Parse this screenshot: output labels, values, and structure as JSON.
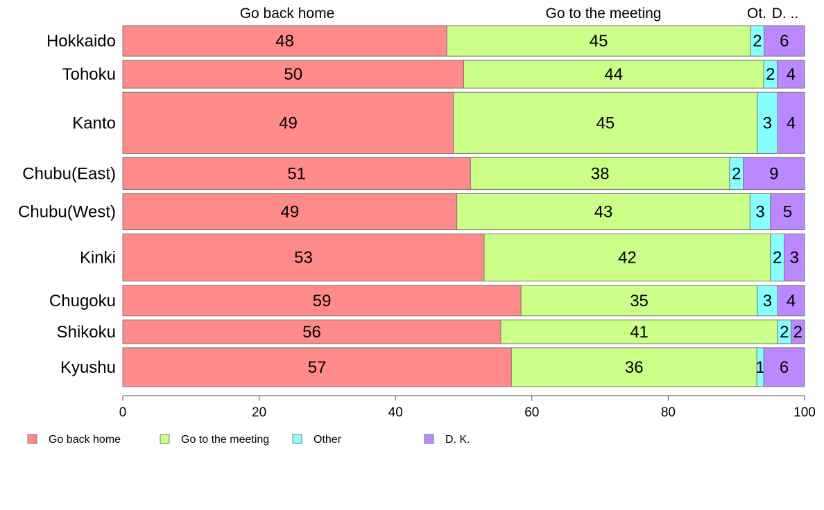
{
  "chart_data": {
    "type": "bar",
    "orientation": "horizontal",
    "stacked": true,
    "categories": [
      "Hokkaido",
      "Tohoku",
      "Kanto",
      "Chubu(East)",
      "Chubu(West)",
      "Kinki",
      "Chugoku",
      "Shikoku",
      "Kyushu"
    ],
    "series": [
      {
        "name": "Go back home",
        "color": "#ff8a8a",
        "values": [
          48,
          50,
          49,
          51,
          49,
          53,
          59,
          56,
          57
        ]
      },
      {
        "name": "Go to the meeting",
        "color": "#ccff88",
        "values": [
          45,
          44,
          45,
          38,
          43,
          42,
          35,
          41,
          36
        ]
      },
      {
        "name": "Other",
        "color": "#88ffff",
        "values": [
          2,
          2,
          3,
          2,
          3,
          2,
          3,
          2,
          1
        ]
      },
      {
        "name": "D. K.",
        "color": "#bb88ff",
        "values": [
          6,
          4,
          4,
          9,
          5,
          3,
          4,
          2,
          6
        ]
      }
    ],
    "column_headers": [
      "Go back home",
      "Go to the meeting",
      "Ot.",
      "D. .."
    ],
    "xlim": [
      0,
      100
    ],
    "xticks": [
      0,
      20,
      40,
      60,
      80,
      100
    ],
    "legend_position": "bottom-left",
    "grid": false
  }
}
